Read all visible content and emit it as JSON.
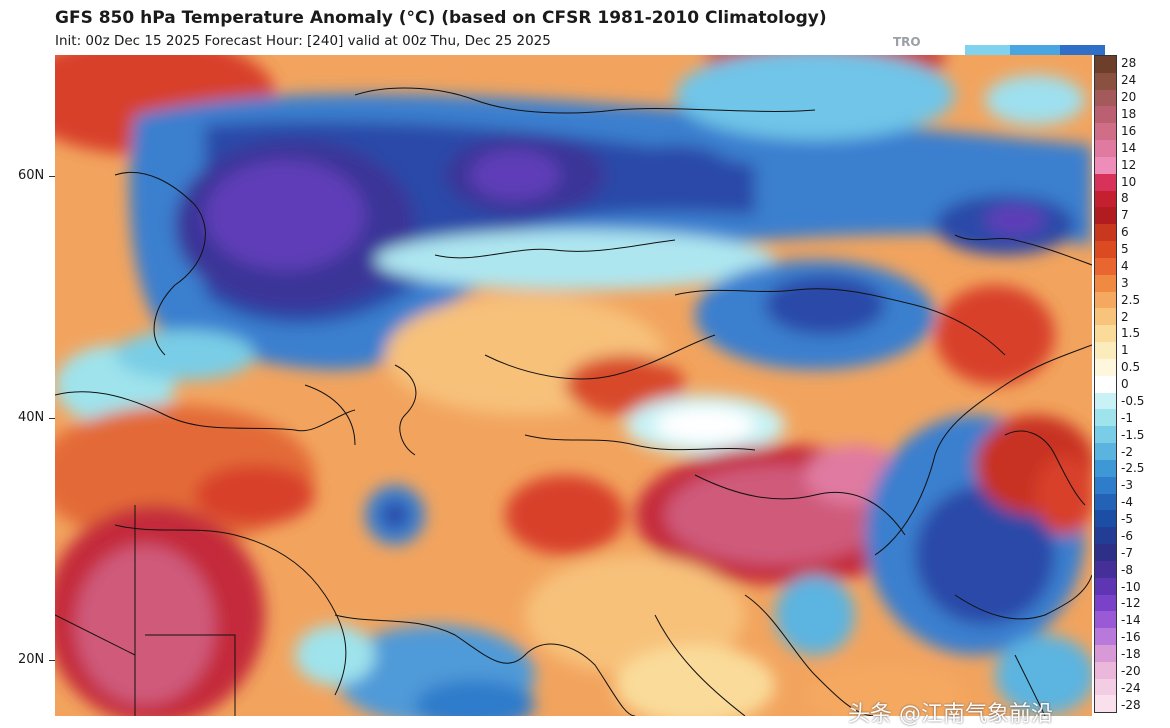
{
  "title": "GFS 850 hPa Temperature Anomaly (°C) (based on CFSR 1981-2010 Climatology)",
  "subtitle": "Init: 00z Dec 15 2025   Forecast Hour: [240]   valid at 00z Thu, Dec 25 2025",
  "logo_text": "TRO",
  "latitude_labels": [
    "60N",
    "40N",
    "20N"
  ],
  "colorbar": {
    "labels": [
      "28",
      "24",
      "20",
      "18",
      "16",
      "14",
      "12",
      "10",
      "8",
      "7",
      "6",
      "5",
      "4",
      "3",
      "2.5",
      "2",
      "1.5",
      "1",
      "0.5",
      "0",
      "-0.5",
      "-1",
      "-1.5",
      "-2",
      "-2.5",
      "-3",
      "-4",
      "-5",
      "-6",
      "-7",
      "-8",
      "-10",
      "-12",
      "-14",
      "-16",
      "-18",
      "-20",
      "-24",
      "-28"
    ],
    "colors": [
      "#6b3f2a",
      "#8a5040",
      "#a45a5a",
      "#bb6070",
      "#cf6e86",
      "#e07aa0",
      "#ee8cba",
      "#d8325a",
      "#c42030",
      "#b01c20",
      "#c8381e",
      "#dc4a22",
      "#ea6630",
      "#f08a42",
      "#f5a860",
      "#f8c47c",
      "#fadb9a",
      "#fcecbc",
      "#fef7de",
      "#ffffff",
      "#c8f2f5",
      "#9fe3ec",
      "#79cde6",
      "#5bb4e0",
      "#3f98d6",
      "#2f7ccb",
      "#2462b8",
      "#1d4ea6",
      "#233d94",
      "#2e3088",
      "#45309a",
      "#5e36b4",
      "#7a42c8",
      "#9a5ad6",
      "#b879da",
      "#d79ad6",
      "#ebb8dc",
      "#f3cde3",
      "#fae0ec"
    ]
  },
  "watermark": "头条 @江南气象前沿"
}
